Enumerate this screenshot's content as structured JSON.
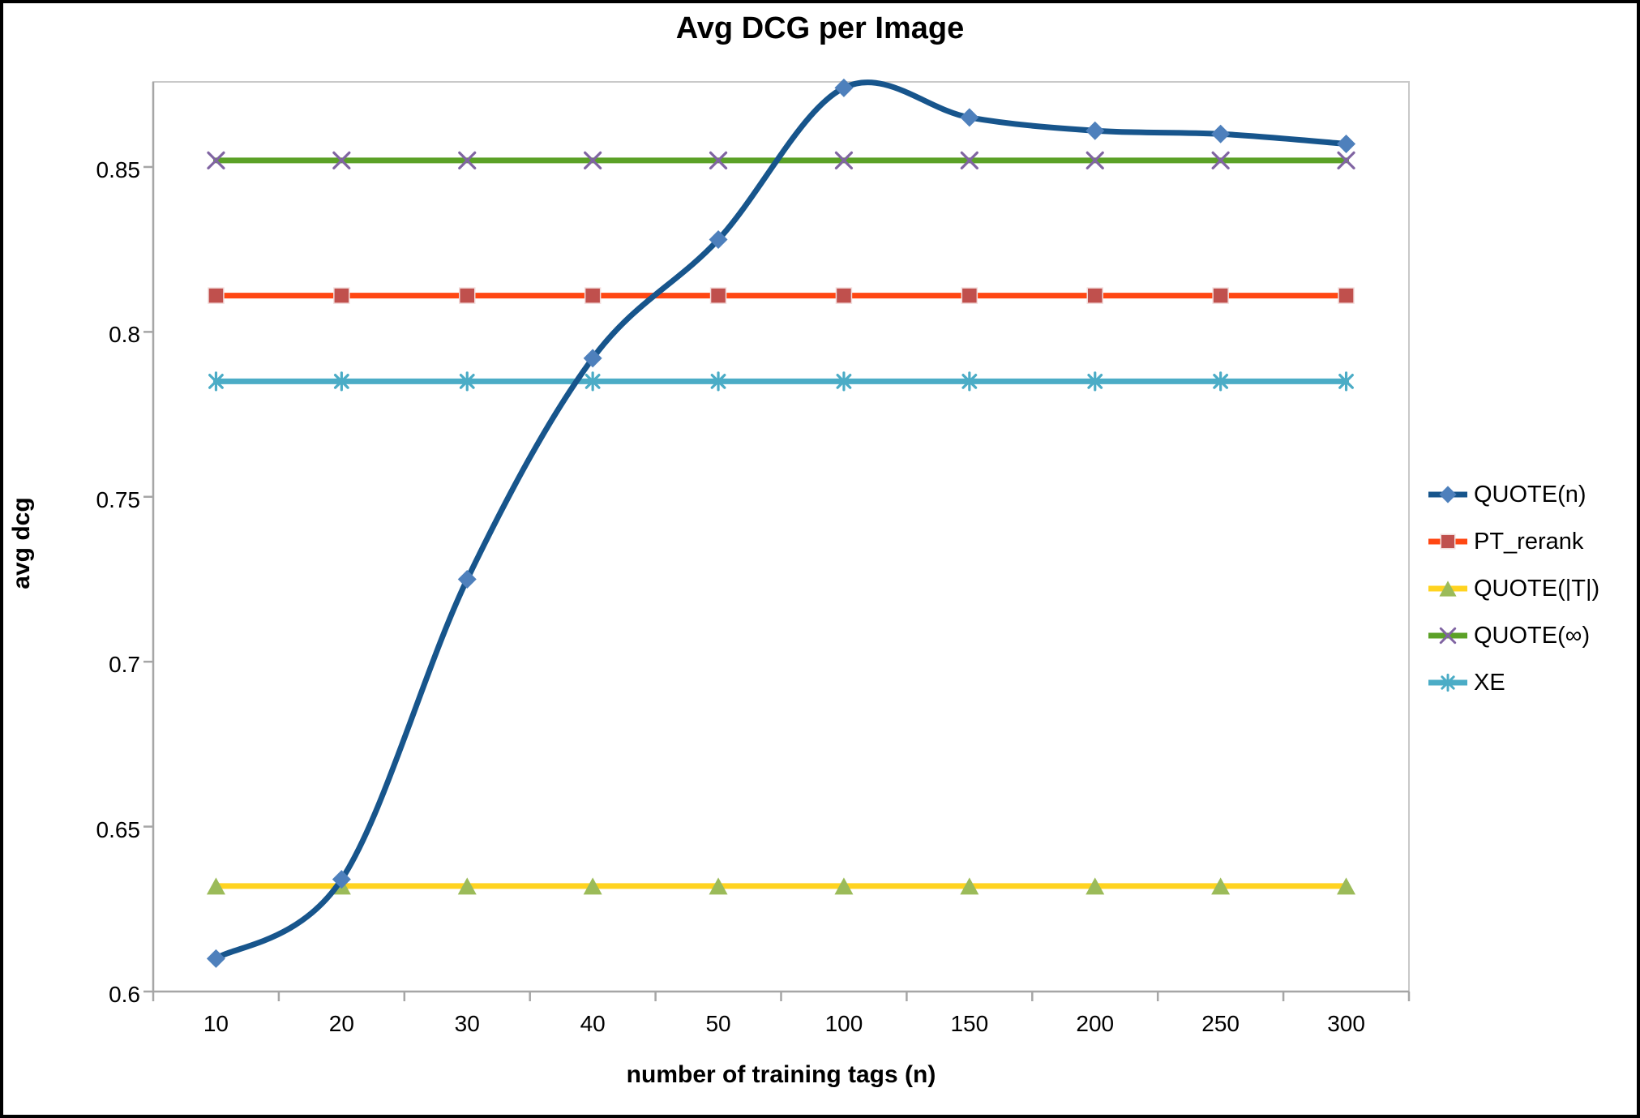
{
  "chart_data": {
    "type": "line",
    "title": "Avg DCG per Image",
    "xlabel": "number of training tags (n)",
    "ylabel": "avg dcg",
    "categories": [
      "10",
      "20",
      "30",
      "40",
      "50",
      "100",
      "150",
      "200",
      "250",
      "300"
    ],
    "y_ticks": [
      {
        "value": 0.6,
        "label": "0.6"
      },
      {
        "value": 0.65,
        "label": "0.65"
      },
      {
        "value": 0.7,
        "label": "0.7"
      },
      {
        "value": 0.75,
        "label": "0.75"
      },
      {
        "value": 0.8,
        "label": "0.8"
      },
      {
        "value": 0.85,
        "label": "0.85"
      }
    ],
    "ylim": [
      0.6,
      0.8758
    ],
    "grid": false,
    "legend_position": "right",
    "series": [
      {
        "name": "QUOTE(n)",
        "marker": "diamond",
        "line_color": "#17558C",
        "marker_color": "#4E80BC",
        "smooth": true,
        "values": [
          0.61,
          0.634,
          0.725,
          0.792,
          0.828,
          0.874,
          0.865,
          0.861,
          0.86,
          0.857
        ]
      },
      {
        "name": "PT_rerank",
        "marker": "square",
        "line_color": "#FF4713",
        "marker_color": "#C0504D",
        "smooth": false,
        "values": [
          0.811,
          0.811,
          0.811,
          0.811,
          0.811,
          0.811,
          0.811,
          0.811,
          0.811,
          0.811
        ]
      },
      {
        "name": "QUOTE(|T|)",
        "marker": "triangle",
        "line_color": "#FFD320",
        "marker_color": "#9BBB59",
        "smooth": false,
        "values": [
          0.632,
          0.632,
          0.632,
          0.632,
          0.632,
          0.632,
          0.632,
          0.632,
          0.632,
          0.632
        ]
      },
      {
        "name": "QUOTE(∞)",
        "marker": "x",
        "line_color": "#5BA127",
        "marker_color": "#8064A2",
        "smooth": false,
        "values": [
          0.852,
          0.852,
          0.852,
          0.852,
          0.852,
          0.852,
          0.852,
          0.852,
          0.852,
          0.852
        ]
      },
      {
        "name": "XE",
        "marker": "asterisk",
        "line_color": "#4BACC6",
        "marker_color": "#4BACC6",
        "smooth": false,
        "values": [
          0.785,
          0.785,
          0.785,
          0.785,
          0.785,
          0.785,
          0.785,
          0.785,
          0.785,
          0.785
        ]
      }
    ],
    "colors": {
      "axis_line": "#A6A6A6",
      "plot_border": "#C9C9C9",
      "text": "#000000",
      "background": "#FFFFFF"
    }
  }
}
